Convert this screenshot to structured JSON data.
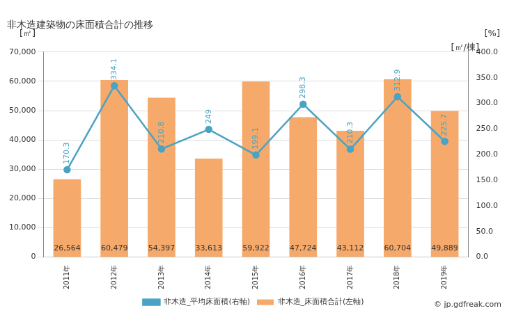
{
  "chart_data": {
    "type": "bar",
    "title": "非木造建築物の床面積合計の推移",
    "y_label": "[㎡]",
    "y2_labels": [
      "[%]",
      "[㎡/棟]"
    ],
    "annotations": [
      "© jp.gdfreak.com"
    ],
    "categories": [
      "2011年",
      "2012年",
      "2013年",
      "2014年",
      "2015年",
      "2016年",
      "2017年",
      "2018年",
      "2019年"
    ],
    "series": [
      {
        "name": "非木造_床面積合計(左軸)",
        "type": "bar",
        "color": "#f5a96a",
        "values": [
          26564,
          60479,
          54397,
          33613,
          59922,
          47724,
          43112,
          60704,
          49889
        ],
        "value_labels": [
          "26,564",
          "60,479",
          "54,397",
          "33,613",
          "59,922",
          "47,724",
          "43,112",
          "60,704",
          "49,889"
        ]
      },
      {
        "name": "非木造_平均床面積(右軸)",
        "type": "line",
        "axis": "y2",
        "color": "#4aa3c4",
        "marker": "circle",
        "values": [
          170.3,
          334.1,
          210.8,
          249,
          199.1,
          298.3,
          210.3,
          312.9,
          225.7
        ]
      }
    ],
    "ylim": [
      0,
      70000
    ],
    "yticks": [
      0,
      {
        "value": 10000,
        "label": "10,000"
      },
      {
        "value": 20000,
        "label": "20,000"
      },
      {
        "value": 30000,
        "label": "30,000"
      },
      {
        "value": 40000,
        "label": "40,000"
      },
      {
        "value": 50000,
        "label": "50,000"
      },
      {
        "value": 60000,
        "label": "60,000"
      },
      {
        "value": 70000,
        "label": "70,000"
      }
    ],
    "y2lim": [
      0,
      400
    ],
    "y2ticks": [
      {
        "value": 0,
        "label": "0.0"
      },
      {
        "value": 50,
        "label": "50.0"
      },
      {
        "value": 100,
        "label": "100.0"
      },
      {
        "value": 150,
        "label": "150.0"
      },
      {
        "value": 200,
        "label": "200.0"
      },
      {
        "value": 250,
        "label": "250.0"
      },
      {
        "value": 300,
        "label": "300.0"
      },
      {
        "value": 350,
        "label": "350.0"
      },
      {
        "value": 400,
        "label": "400.0"
      }
    ],
    "grid": true,
    "legend": "bottom",
    "data_labels": true
  }
}
